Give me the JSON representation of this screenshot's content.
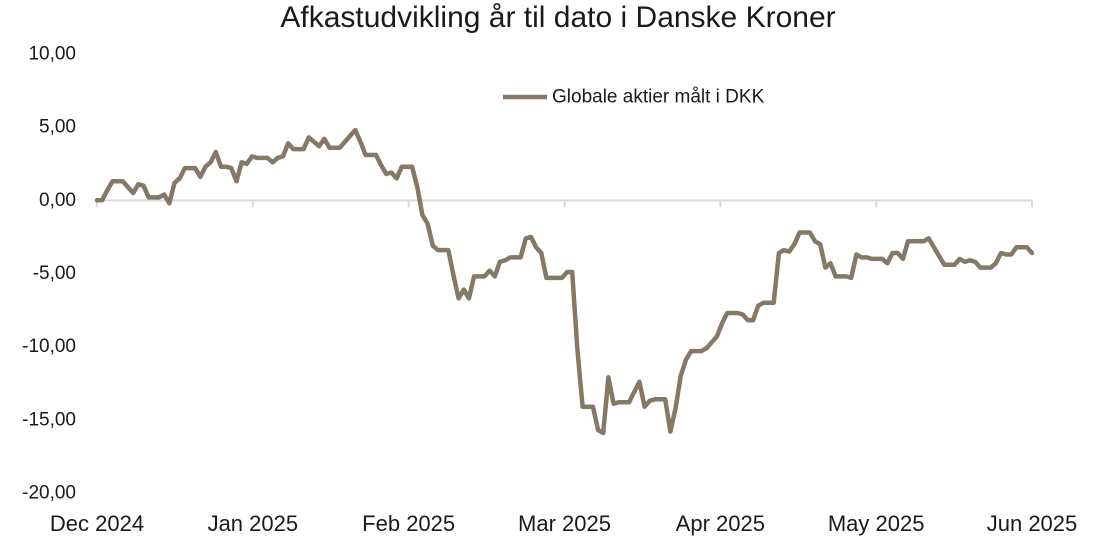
{
  "chart_data": {
    "type": "line",
    "title": "Afkastudvikling år til dato i Danske Kroner",
    "xlabel": "",
    "ylabel": "",
    "ylim": [
      -20,
      10
    ],
    "y_ticks": [
      "10,00",
      "5,00",
      "0,00",
      "-5,00",
      "-10,00",
      "-15,00",
      "-20,00"
    ],
    "x_ticks": [
      "Dec 2024",
      "Jan 2025",
      "Feb 2025",
      "Mar 2025",
      "Apr 2025",
      "May 2025",
      "Jun 2025"
    ],
    "grid": false,
    "legend_position": "top-right",
    "series": [
      {
        "name": "Globale aktier målt i DKK",
        "color": "#857866",
        "values": [
          0.0,
          0.0,
          0.7,
          1.3,
          1.3,
          1.3,
          0.9,
          0.5,
          1.1,
          1.0,
          0.2,
          0.2,
          0.2,
          0.4,
          -0.2,
          1.2,
          1.5,
          2.2,
          2.2,
          2.2,
          1.6,
          2.3,
          2.6,
          3.3,
          2.3,
          2.3,
          2.2,
          1.3,
          2.6,
          2.5,
          3.0,
          2.9,
          2.9,
          2.9,
          2.6,
          2.9,
          3.0,
          3.9,
          3.5,
          3.5,
          3.5,
          4.3,
          4.0,
          3.7,
          4.2,
          3.6,
          3.6,
          3.6,
          4.0,
          4.4,
          4.8,
          4.0,
          3.1,
          3.1,
          3.1,
          2.4,
          1.8,
          1.9,
          1.5,
          2.3,
          2.3,
          2.3,
          0.9,
          -1.0,
          -1.6,
          -3.1,
          -3.4,
          -3.4,
          -3.4,
          -5.1,
          -6.7,
          -6.1,
          -6.7,
          -5.2,
          -5.2,
          -5.2,
          -4.8,
          -5.2,
          -4.2,
          -4.1,
          -3.9,
          -3.9,
          -3.9,
          -2.6,
          -2.5,
          -3.2,
          -3.6,
          -5.3,
          -5.3,
          -5.3,
          -5.3,
          -4.9,
          -4.9,
          -10.2,
          -14.1,
          -14.1,
          -14.1,
          -15.7,
          -15.9,
          -12.1,
          -13.9,
          -13.8,
          -13.8,
          -13.8,
          -13.1,
          -12.4,
          -14.1,
          -13.7,
          -13.6,
          -13.6,
          -13.6,
          -15.8,
          -14.2,
          -12.0,
          -10.9,
          -10.3,
          -10.3,
          -10.3,
          -10.1,
          -9.7,
          -9.3,
          -8.4,
          -7.7,
          -7.7,
          -7.7,
          -7.8,
          -8.2,
          -8.2,
          -7.2,
          -7.0,
          -7.0,
          -7.0,
          -3.6,
          -3.4,
          -3.5,
          -3.0,
          -2.2,
          -2.2,
          -2.2,
          -2.8,
          -3.0,
          -4.6,
          -4.3,
          -5.2,
          -5.2,
          -5.2,
          -5.3,
          -3.7,
          -3.9,
          -3.9,
          -4.0,
          -4.0,
          -4.0,
          -4.3,
          -3.6,
          -3.6,
          -4.0,
          -2.8,
          -2.8,
          -2.8,
          -2.8,
          -2.6,
          -3.2,
          -3.8,
          -4.4,
          -4.4,
          -4.4,
          -4.0,
          -4.2,
          -4.1,
          -4.2,
          -4.6,
          -4.6,
          -4.6,
          -4.3,
          -3.6,
          -3.7,
          -3.7,
          -3.2,
          -3.2,
          -3.2,
          -3.6
        ]
      }
    ]
  }
}
